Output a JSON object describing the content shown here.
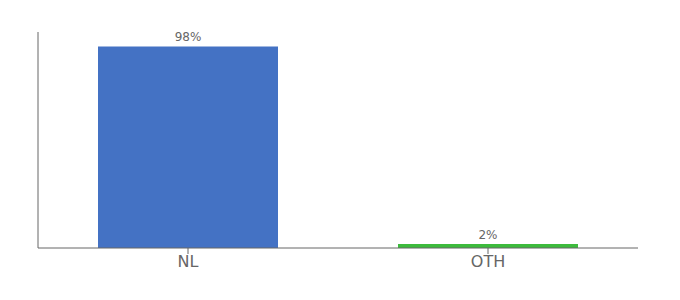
{
  "chart_data": {
    "type": "bar",
    "categories": [
      "NL",
      "OTH"
    ],
    "values": [
      98,
      2
    ],
    "colors": [
      "#4472c4",
      "#3dbb3d"
    ],
    "value_labels": [
      "98%",
      "2%"
    ],
    "data_labels": true,
    "ylim": [
      0,
      105
    ],
    "tick_labels": "x",
    "grid": false
  }
}
